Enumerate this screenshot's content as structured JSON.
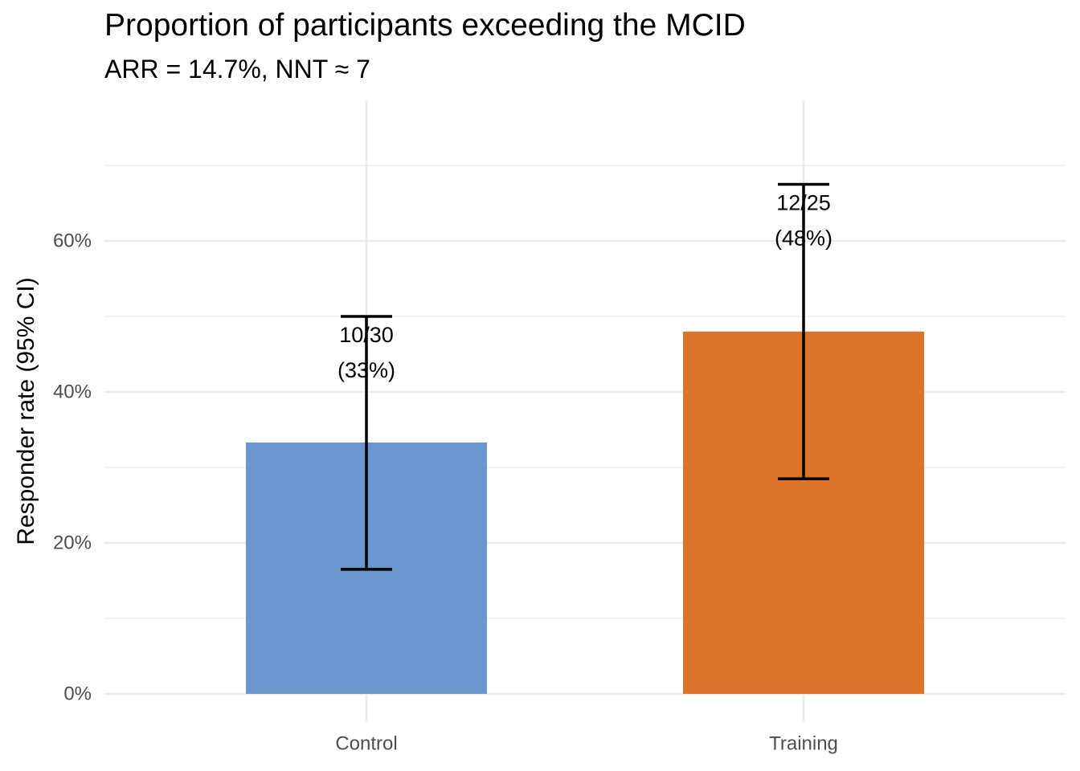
{
  "chart_data": {
    "type": "bar",
    "title": "Proportion of participants exceeding the MCID",
    "subtitle": "ARR = 14.7%,  NNT ≈ 7",
    "xlabel": "",
    "ylabel": "Responder rate (95% CI)",
    "categories": [
      "Control",
      "Training"
    ],
    "values": [
      0.333,
      0.48
    ],
    "ci_lower": [
      0.165,
      0.285
    ],
    "ci_upper": [
      0.5,
      0.675
    ],
    "labels": [
      {
        "line1": "10/30",
        "line2": "(33%)"
      },
      {
        "line1": "12/25",
        "line2": "(48%)"
      }
    ],
    "colors": [
      "#6996cd",
      "#db7429"
    ],
    "yticks": [
      "0%",
      "20%",
      "40%",
      "60%"
    ],
    "ylim": [
      0,
      0.7
    ],
    "grid": true
  }
}
